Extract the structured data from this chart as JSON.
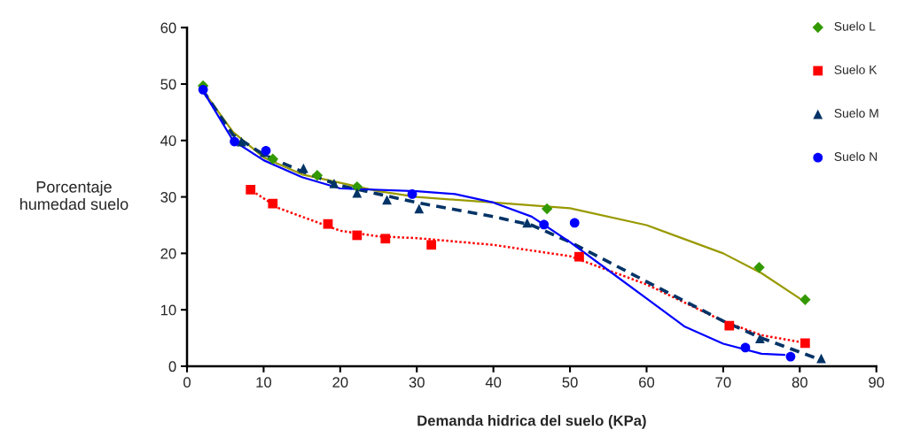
{
  "chart_data": {
    "type": "scatter",
    "xlabel": "Demanda hidrica del suelo (KPa)",
    "ylabel": "Porcentaje\nhumedad suelo",
    "xlim": [
      0,
      90
    ],
    "xticks": [
      0,
      10,
      20,
      30,
      40,
      50,
      60,
      70,
      80,
      90
    ],
    "ylim": [
      0,
      60
    ],
    "yticks": [
      0,
      10,
      20,
      30,
      40,
      50,
      60
    ],
    "grid": false,
    "legend": "top right",
    "series": [
      {
        "name": "Suelo L",
        "marker": "diamond",
        "color": "#339900",
        "x": [
          2.1,
          11.2,
          17,
          22.2,
          47,
          74.7,
          80.7
        ],
        "values": [
          49.7,
          36.7,
          33.8,
          31.8,
          27.9,
          17.5,
          11.8
        ]
      },
      {
        "name": "Suelo K",
        "marker": "square",
        "color": "#ff0000",
        "x": [
          8.3,
          11.2,
          18.4,
          22.2,
          25.9,
          31.9,
          51.2,
          70.8,
          80.7
        ],
        "values": [
          31.3,
          28.8,
          25.2,
          23.2,
          22.6,
          21.5,
          19.4,
          7.2,
          4.1
        ]
      },
      {
        "name": "Suelo M",
        "marker": "triangle",
        "color": "#003366",
        "x": [
          7.1,
          10.1,
          15.2,
          19.2,
          22.2,
          26.1,
          30.3,
          44.4,
          74.8,
          82.8
        ],
        "values": [
          39.8,
          37.9,
          35.1,
          32.4,
          30.7,
          29.5,
          27.9,
          25.4,
          4.9,
          1.4
        ]
      },
      {
        "name": "Suelo N",
        "marker": "circle",
        "color": "#0000ff",
        "x": [
          2.1,
          6.2,
          10.3,
          29.4,
          46.6,
          50.6,
          72.9,
          78.8
        ],
        "values": [
          49.0,
          39.8,
          38.2,
          30.5,
          25.1,
          25.4,
          3.3,
          1.7
        ]
      },
      {
        "type": "line",
        "marker": "none",
        "line_style": "solid",
        "color": "#999900",
        "x": [
          2,
          6,
          10,
          15,
          20,
          25,
          30,
          40,
          50,
          60,
          70,
          75,
          80
        ],
        "values": [
          49,
          41.5,
          37,
          34,
          32.5,
          31,
          30,
          29,
          28,
          25,
          20,
          16.5,
          12
        ]
      },
      {
        "type": "line",
        "marker": "none",
        "line_style": "dotted",
        "color": "#ff0000",
        "x": [
          8,
          12,
          16,
          20,
          25,
          30,
          40,
          50,
          60,
          70,
          75,
          80
        ],
        "values": [
          31.5,
          28,
          26,
          24,
          23,
          22.7,
          21.5,
          19.5,
          14.5,
          8,
          5.5,
          4.3
        ]
      },
      {
        "type": "line",
        "marker": "none",
        "line_style": "dashed",
        "color": "#003366",
        "x": [
          2,
          6,
          10,
          15,
          20,
          25,
          30,
          40,
          45,
          50,
          60,
          70,
          75,
          82
        ],
        "values": [
          49,
          41,
          37.5,
          34.5,
          32,
          30.5,
          29,
          26.5,
          25,
          22,
          15,
          8,
          5,
          1.5
        ]
      },
      {
        "type": "line",
        "marker": "none",
        "line_style": "solid",
        "color": "#0000ff",
        "x": [
          2,
          6,
          10,
          15,
          20,
          30,
          35,
          40,
          45,
          50,
          55,
          60,
          65,
          70,
          75,
          78
        ],
        "values": [
          49,
          40,
          36.5,
          33.5,
          31.5,
          31,
          30.5,
          29,
          26.5,
          22,
          17,
          12,
          7,
          4,
          2.2,
          2
        ]
      }
    ]
  }
}
